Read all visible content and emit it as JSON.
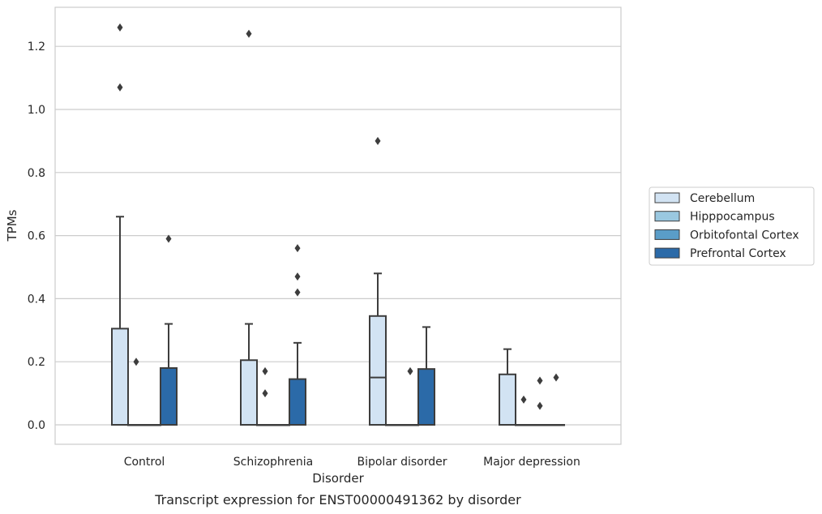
{
  "chart_data": {
    "type": "box",
    "xlabel": "Disorder",
    "ylabel": "TPMs",
    "caption": "Transcript expression for ENST00000491362 by disorder",
    "ylim": [
      -0.06,
      1.33
    ],
    "yticks": [
      "0.0",
      "0.2",
      "0.4",
      "0.6",
      "0.8",
      "1.0",
      "1.2"
    ],
    "grid": "horizontal",
    "legend_position": "right",
    "categories": [
      "Control",
      "Schizophrenia",
      "Bipolar disorder",
      "Major depression"
    ],
    "series": [
      {
        "name": "Cerebellum",
        "color": "#d2e3f3",
        "boxes": [
          {
            "q1": 0.0,
            "median": 0.0,
            "q3": 0.305,
            "whisker_low": 0.0,
            "whisker_high": 0.66,
            "outliers": [
              1.07,
              1.26
            ]
          },
          {
            "q1": 0.0,
            "median": 0.0,
            "q3": 0.205,
            "whisker_low": 0.0,
            "whisker_high": 0.32,
            "outliers": [
              1.24
            ]
          },
          {
            "q1": 0.0,
            "median": 0.15,
            "q3": 0.345,
            "whisker_low": 0.0,
            "whisker_high": 0.48,
            "outliers": [
              0.9
            ]
          },
          {
            "q1": 0.0,
            "median": 0.0,
            "q3": 0.16,
            "whisker_low": 0.0,
            "whisker_high": 0.24,
            "outliers": []
          }
        ]
      },
      {
        "name": "Hipppocampus",
        "color": "#9ac8e0",
        "boxes": [
          {
            "q1": 0.0,
            "median": 0.0,
            "q3": 0.0,
            "whisker_low": 0.0,
            "whisker_high": 0.0,
            "outliers": [
              0.2
            ]
          },
          {
            "q1": 0.0,
            "median": 0.0,
            "q3": 0.0,
            "whisker_low": 0.0,
            "whisker_high": 0.0,
            "outliers": [
              0.1,
              0.17
            ]
          },
          {
            "q1": 0.0,
            "median": 0.0,
            "q3": 0.0,
            "whisker_low": 0.0,
            "whisker_high": 0.0,
            "outliers": []
          },
          {
            "q1": 0.0,
            "median": 0.0,
            "q3": 0.0,
            "whisker_low": 0.0,
            "whisker_high": 0.0,
            "outliers": [
              0.08
            ]
          }
        ]
      },
      {
        "name": "Orbitofontal Cortex",
        "color": "#5a9dc8",
        "boxes": [
          {
            "q1": 0.0,
            "median": 0.0,
            "q3": 0.0,
            "whisker_low": 0.0,
            "whisker_high": 0.0,
            "outliers": []
          },
          {
            "q1": 0.0,
            "median": 0.0,
            "q3": 0.0,
            "whisker_low": 0.0,
            "whisker_high": 0.0,
            "outliers": []
          },
          {
            "q1": 0.0,
            "median": 0.0,
            "q3": 0.0,
            "whisker_low": 0.0,
            "whisker_high": 0.0,
            "outliers": [
              0.17
            ]
          },
          {
            "q1": 0.0,
            "median": 0.0,
            "q3": 0.0,
            "whisker_low": 0.0,
            "whisker_high": 0.0,
            "outliers": [
              0.06,
              0.14
            ]
          }
        ]
      },
      {
        "name": "Prefrontal Cortex",
        "color": "#2b6aa8",
        "boxes": [
          {
            "q1": 0.0,
            "median": 0.0,
            "q3": 0.18,
            "whisker_low": 0.0,
            "whisker_high": 0.32,
            "outliers": [
              0.59
            ]
          },
          {
            "q1": 0.0,
            "median": 0.0,
            "q3": 0.145,
            "whisker_low": 0.0,
            "whisker_high": 0.26,
            "outliers": [
              0.42,
              0.47,
              0.56
            ]
          },
          {
            "q1": 0.0,
            "median": 0.0,
            "q3": 0.177,
            "whisker_low": 0.0,
            "whisker_high": 0.31,
            "outliers": []
          },
          {
            "q1": 0.0,
            "median": 0.0,
            "q3": 0.0,
            "whisker_low": 0.0,
            "whisker_high": 0.0,
            "outliers": [
              0.15
            ]
          }
        ]
      }
    ]
  }
}
